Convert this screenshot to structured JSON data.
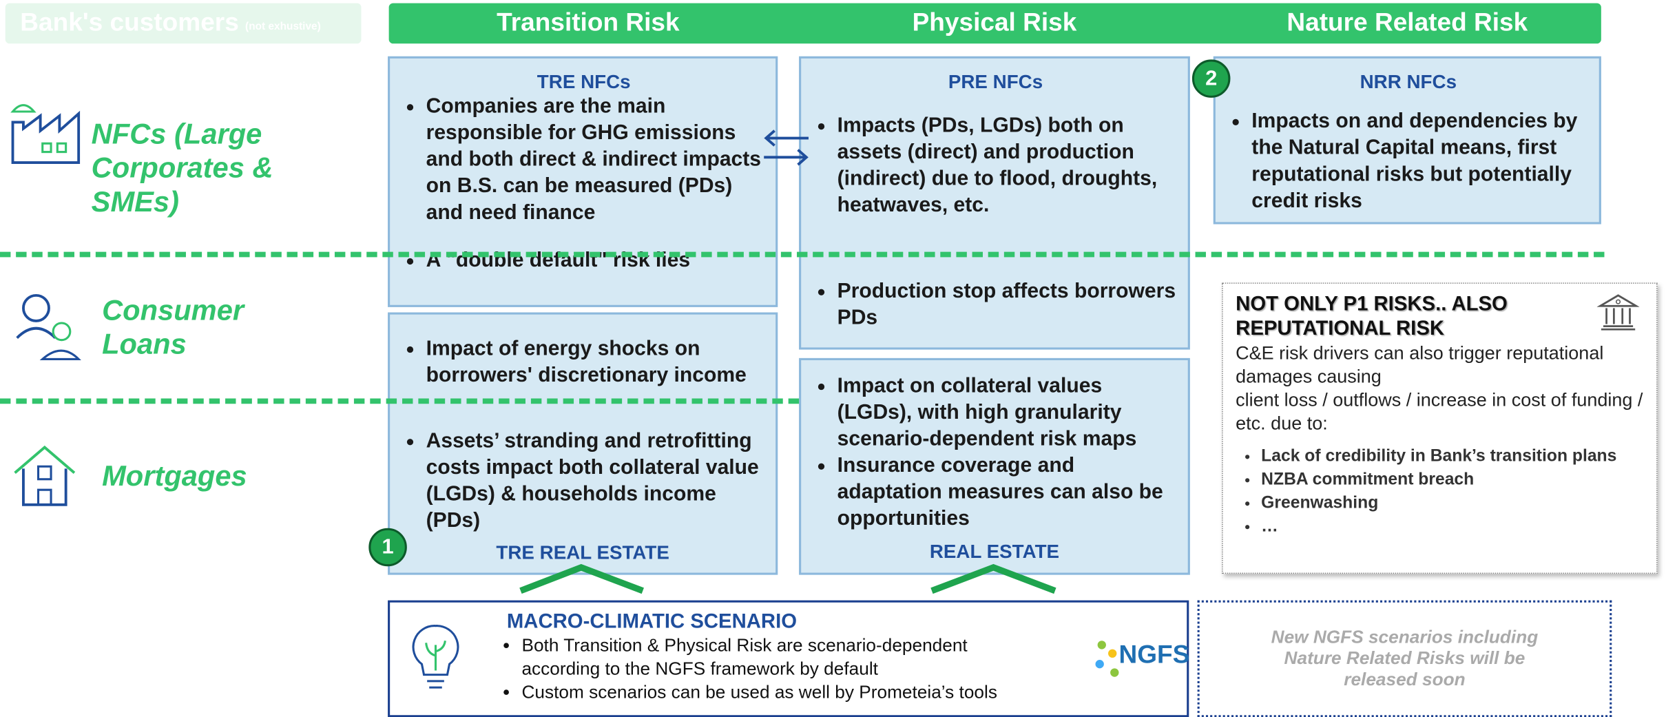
{
  "header": {
    "customers": "Bank's customers",
    "customers_note": "(not exhustive)",
    "columns": [
      "Transition Risk",
      "Physical Risk",
      "Nature Related Risk"
    ]
  },
  "rows": [
    "NFCs (Large Corporates & SMEs)",
    "Consumer Loans",
    "Mortgages"
  ],
  "tre_nfcs": {
    "title": "TRE NFCs",
    "bullets": [
      "Companies are the main responsible for GHG emissions and both  direct & indirect impacts on B.S. can be measured (PDs) and need finance",
      "A \"double default\" risk lies"
    ]
  },
  "tre_real_estate": {
    "title": "TRE REAL ESTATE",
    "bullets": [
      "Impact of energy shocks on borrowers' discretionary income",
      "Assets’ stranding and retrofitting costs impact both collateral value (LGDs) & households income (PDs)"
    ]
  },
  "pre_nfcs": {
    "title": "PRE NFCs",
    "bullets": [
      "Impacts (PDs, LGDs) both on assets (direct) and production (indirect) due to flood, droughts, heatwaves, etc.",
      "Production stop affects borrowers PDs"
    ]
  },
  "real_estate": {
    "title": "REAL ESTATE",
    "bullets": [
      "Impact on collateral values (LGDs), with high granularity scenario-dependent risk maps",
      "Insurance coverage and adaptation measures can also be opportunities"
    ]
  },
  "nrr_nfcs": {
    "title": "NRR NFCs",
    "bullets": [
      "Impacts on and dependencies by the Natural Capital means, first reputational risks but potentially credit risks"
    ]
  },
  "badges": [
    "1",
    "2"
  ],
  "reputational": {
    "title": "NOT ONLY P1 RISKS.. ALSO REPUTATIONAL RISK",
    "text": [
      "C&E risk drivers can also trigger reputational damages causing",
      "client loss / outflows / increase in cost of funding / etc. due to:"
    ],
    "bullets": [
      "Lack of credibility in Bank’s transition plans",
      "NZBA commitment breach",
      "Greenwashing",
      "…"
    ]
  },
  "scenario": {
    "title": "MACRO-CLIMATIC SCENARIO",
    "bullets": [
      "Both Transition & Physical Risk are scenario-dependent according to the NGFS framework by default",
      "Custom scenarios can be used as well by Prometeia’s tools"
    ],
    "logo": "NGFS"
  },
  "ngfs_note": "New NGFS scenarios including Nature Related Risks will be released soon"
}
